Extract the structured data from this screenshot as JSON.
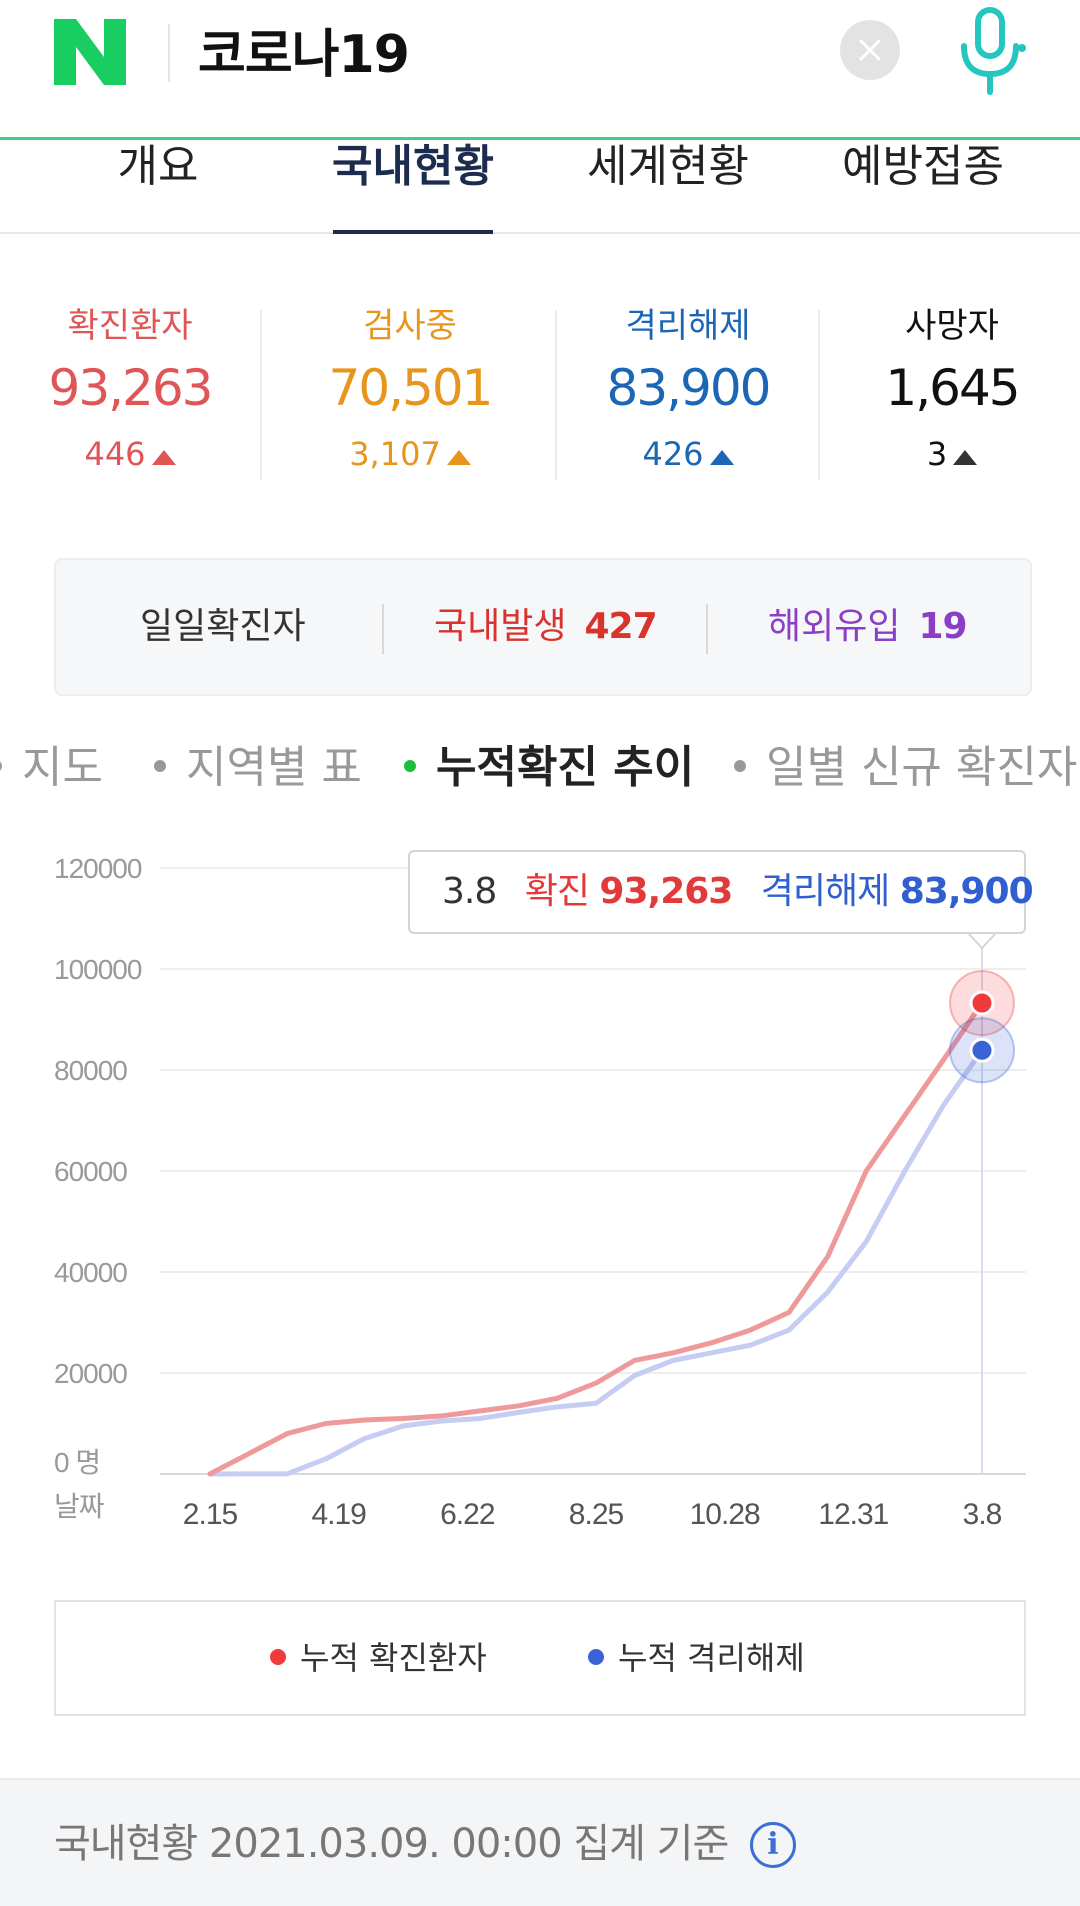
{
  "search": {
    "query": "코로나19"
  },
  "tabs": [
    {
      "label": "개요"
    },
    {
      "label": "국내현황"
    },
    {
      "label": "세계현황"
    },
    {
      "label": "예방접종"
    }
  ],
  "active_tab": "국내현황",
  "stats": [
    {
      "label": "확진환자",
      "value": "93,263",
      "delta": "446",
      "color": "#e05555"
    },
    {
      "label": "검사중",
      "value": "70,501",
      "delta": "3,107",
      "color": "#e8951e"
    },
    {
      "label": "격리해제",
      "value": "83,900",
      "delta": "426",
      "color": "#1b67b6"
    },
    {
      "label": "사망자",
      "value": "1,645",
      "delta": "3",
      "color": "#111111"
    }
  ],
  "daily": {
    "label": "일일확진자",
    "domestic_label": "국내발생",
    "domestic_value": "427",
    "overseas_label": "해외유입",
    "overseas_value": "19"
  },
  "chart_tabs": [
    {
      "label": "지도"
    },
    {
      "label": "지역별 표"
    },
    {
      "label": "누적확진 추이"
    },
    {
      "label": "일별 신규 확진자"
    }
  ],
  "chart_data": {
    "type": "line",
    "title": "",
    "xlabel": "날짜",
    "ylabel": "",
    "y_unit": "0 명",
    "ylim": [
      0,
      120000
    ],
    "yticks": [
      "120000",
      "100000",
      "80000",
      "60000",
      "40000",
      "20000"
    ],
    "xticks": [
      "2.15",
      "4.19",
      "6.22",
      "8.25",
      "10.28",
      "12.31",
      "3.8"
    ],
    "x": [
      "2.15",
      "3.1",
      "3.15",
      "4.1",
      "4.19",
      "5.10",
      "6.1",
      "6.22",
      "7.15",
      "8.10",
      "8.25",
      "9.15",
      "10.1",
      "10.28",
      "11.15",
      "11.25",
      "12.10",
      "12.31",
      "1.20",
      "2.10",
      "3.8"
    ],
    "series": [
      {
        "name": "누적 확진환자",
        "color": "#ef9a9a",
        "values": [
          30,
          4000,
          8000,
          10000,
          10700,
          11000,
          11500,
          12500,
          13500,
          15000,
          18000,
          22500,
          24000,
          26000,
          28500,
          32000,
          43000,
          60000,
          71000,
          82000,
          93263
        ]
      },
      {
        "name": "누적 격리해제",
        "color": "#c5cdf3",
        "values": [
          10,
          20,
          30,
          3000,
          7000,
          9500,
          10500,
          11000,
          12200,
          13300,
          14000,
          19500,
          22500,
          24000,
          25500,
          28500,
          36000,
          46000,
          60000,
          73000,
          83900
        ]
      }
    ]
  },
  "tooltip": {
    "date": "3.8",
    "confirmed_label": "확진",
    "confirmed_value": "93,263",
    "recovered_label": "격리해제",
    "recovered_value": "83,900"
  },
  "legend": [
    {
      "label": "누적 확진환자",
      "color": "#ef3b3b"
    },
    {
      "label": "누적 격리해제",
      "color": "#3b63d6"
    }
  ],
  "footer": {
    "text": "국내현황 2021.03.09. 00:00 집계 기준"
  },
  "icons": {
    "logo": "naver-logo-icon",
    "clear": "close-icon",
    "mic": "microphone-icon",
    "info": "info-icon"
  },
  "colors": {
    "accent": "#3ccf8e",
    "nav_active": "#1c2c4e"
  }
}
